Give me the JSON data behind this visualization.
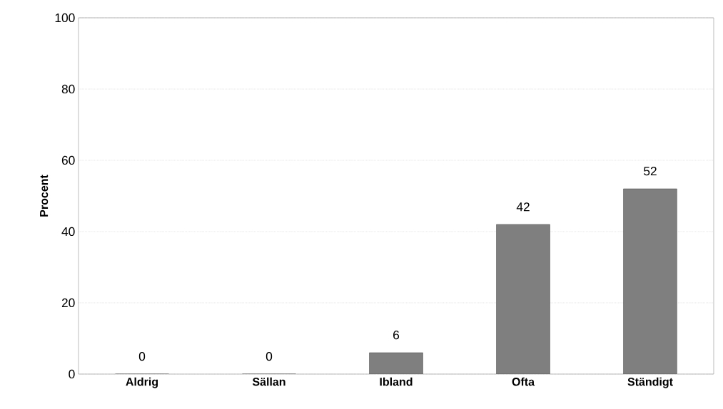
{
  "chart_data": {
    "type": "bar",
    "ylabel": "Procent",
    "categories": [
      "Aldrig",
      "Sällan",
      "Ibland",
      "Ofta",
      "Ständigt"
    ],
    "values": [
      0,
      0,
      6,
      42,
      52
    ],
    "color": "#7f7f7f",
    "ylim": [
      0,
      100
    ],
    "yticks": [
      0,
      20,
      40,
      60,
      80,
      100
    ],
    "grid": "y",
    "data_labels": true
  }
}
